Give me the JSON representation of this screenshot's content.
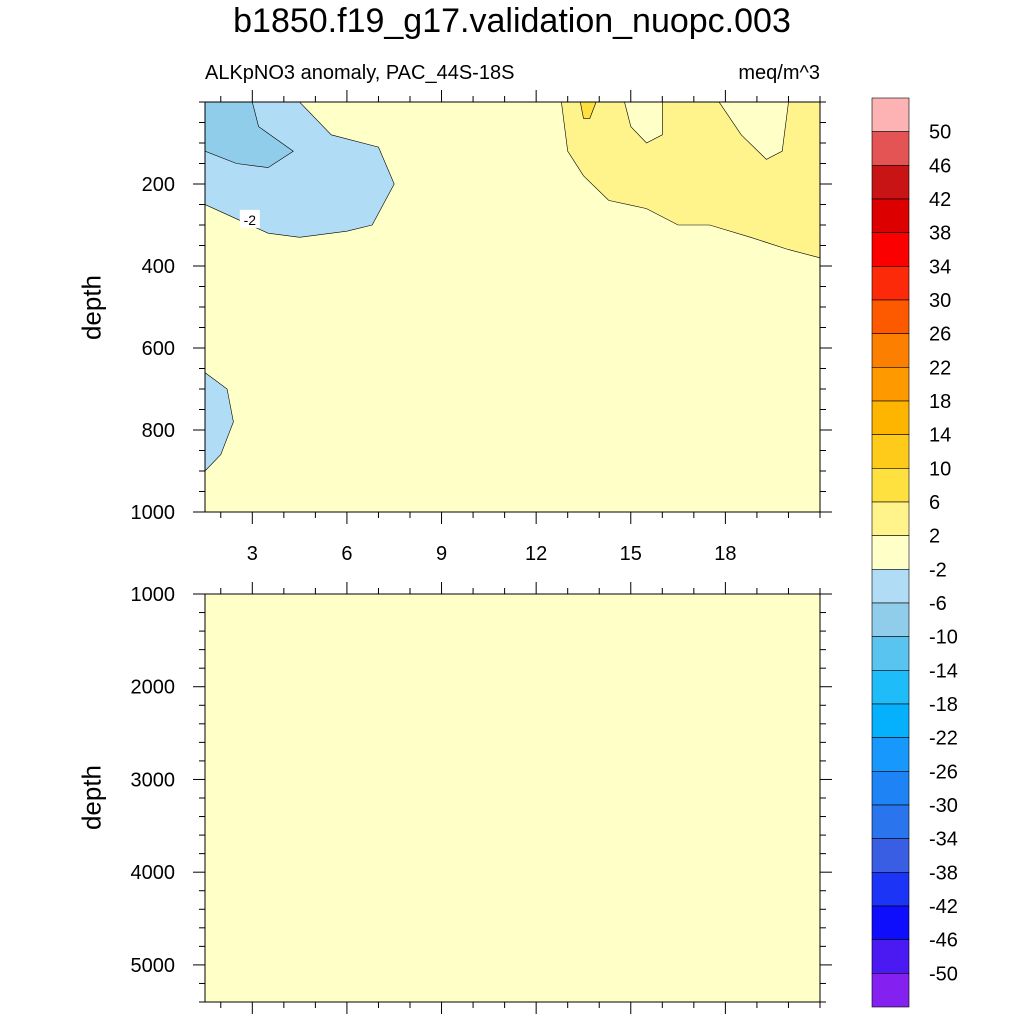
{
  "title": "b1850.f19_g17.validation_nuopc.003",
  "chart_data": {
    "type": "heatmap",
    "subtitle_left": "ALKpNO3 anomaly, PAC_44S-18S",
    "subtitle_right": "meq/m^3",
    "xlim": [
      1.5,
      21
    ],
    "x_ticks": [
      3,
      6,
      9,
      12,
      15,
      18
    ],
    "contour_labels": [
      "-2"
    ],
    "panels": [
      {
        "name": "upper",
        "ylabel": "depth",
        "ylim": [
          0,
          1000
        ],
        "y_ticks": [
          200,
          400,
          600,
          800,
          1000
        ],
        "background_level": "-2 to 2",
        "regions": [
          {
            "level": "-6 to -2",
            "color": "#b0dcf5",
            "outline": [
              [
                1.5,
                0
              ],
              [
                4.5,
                0
              ],
              [
                5.5,
                80
              ],
              [
                7,
                110
              ],
              [
                7.5,
                200
              ],
              [
                6.8,
                300
              ],
              [
                6,
                315
              ],
              [
                4.5,
                330
              ],
              [
                3.5,
                320
              ],
              [
                1.5,
                250
              ]
            ]
          },
          {
            "level": "-10 to -6",
            "color": "#90cdeb",
            "outline": [
              [
                1.5,
                0
              ],
              [
                3,
                0
              ],
              [
                3.2,
                60
              ],
              [
                4.3,
                120
              ],
              [
                3.5,
                160
              ],
              [
                2.5,
                150
              ],
              [
                1.5,
                120
              ]
            ]
          },
          {
            "level": "-6 to -2",
            "color": "#b0dcf5",
            "outline": [
              [
                1.5,
                660
              ],
              [
                2.2,
                700
              ],
              [
                2.4,
                780
              ],
              [
                2,
                860
              ],
              [
                1.5,
                900
              ]
            ]
          },
          {
            "level": "2 to 6",
            "color": "#fff38b",
            "outline": [
              [
                12.8,
                0
              ],
              [
                21,
                0
              ],
              [
                21,
                380
              ],
              [
                20,
                360
              ],
              [
                18.8,
                330
              ],
              [
                17.5,
                300
              ],
              [
                16.5,
                300
              ],
              [
                15.5,
                260
              ],
              [
                14.3,
                240
              ],
              [
                13.5,
                180
              ],
              [
                13,
                120
              ]
            ]
          },
          {
            "level": "-2 to 2",
            "color": "#ffffc8",
            "outline": [
              [
                14.8,
                0
              ],
              [
                16,
                0
              ],
              [
                16,
                80
              ],
              [
                15.5,
                100
              ],
              [
                15,
                60
              ]
            ]
          },
          {
            "level": "-2 to 2",
            "color": "#ffffc8",
            "outline": [
              [
                17.8,
                0
              ],
              [
                20,
                0
              ],
              [
                19.8,
                120
              ],
              [
                19.3,
                140
              ],
              [
                18.5,
                80
              ]
            ]
          },
          {
            "level": "6 to 10",
            "color": "#fee13f",
            "outline": [
              [
                13.4,
                0
              ],
              [
                13.9,
                0
              ],
              [
                13.7,
                40
              ],
              [
                13.5,
                40
              ]
            ]
          }
        ]
      },
      {
        "name": "lower",
        "ylabel": "depth",
        "ylim": [
          1000,
          5400
        ],
        "y_ticks": [
          1000,
          2000,
          3000,
          4000,
          5000
        ],
        "background_level": "-2 to 2",
        "regions": []
      }
    ],
    "colorbar": {
      "labels": [
        "50",
        "46",
        "42",
        "38",
        "34",
        "30",
        "26",
        "22",
        "18",
        "14",
        "10",
        "6",
        "2",
        "-2",
        "-6",
        "-10",
        "-14",
        "-18",
        "-22",
        "-26",
        "-30",
        "-34",
        "-38",
        "-42",
        "-46",
        "-50"
      ],
      "colors": [
        "#fdb3b3",
        "#e45454",
        "#c81414",
        "#dd0000",
        "#fb0000",
        "#fd2a0a",
        "#fd5a00",
        "#fd7f00",
        "#fe9900",
        "#feb500",
        "#fecb1a",
        "#fee13f",
        "#fff38b",
        "#ffffc8",
        "#b0dcf5",
        "#90cdeb",
        "#5ac4f0",
        "#1ebdfa",
        "#05b0fd",
        "#1698fd",
        "#1e84f6",
        "#2a74ed",
        "#3a5ee3",
        "#1c34f5",
        "#0e0dfc",
        "#4b1af2",
        "#8420f0"
      ]
    },
    "fill_color": "#ffffc8",
    "grid": false
  }
}
